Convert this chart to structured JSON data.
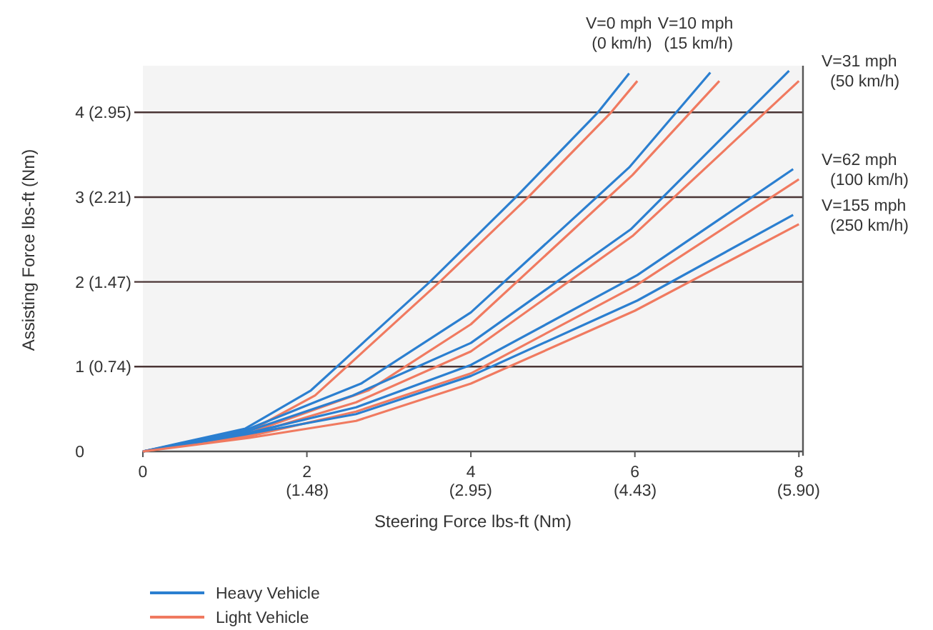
{
  "chart_data": {
    "type": "line",
    "xlabel": "Steering Force lbs-ft (Nm)",
    "ylabel": "Assisting Force lbs-ft (Nm)",
    "xlim": [
      0,
      8.05
    ],
    "ylim": [
      0,
      4.55
    ],
    "xticks": [
      0,
      2,
      4,
      6,
      8
    ],
    "yticks": [
      0,
      1,
      2,
      3,
      4
    ],
    "x2lim": [
      0,
      5.94
    ],
    "x2ticks": [
      {
        "value": 1.48,
        "label": "(1.48)"
      },
      {
        "value": 2.95,
        "label": "(2.95)"
      },
      {
        "value": 4.43,
        "label": "(4.43)"
      },
      {
        "value": 5.9,
        "label": "(5.90)"
      }
    ],
    "y2lim": [
      0,
      3.356
    ],
    "y2ticks": [
      {
        "value": 0.74,
        "label": "(0.74)"
      },
      {
        "value": 1.47,
        "label": "(1.47)"
      },
      {
        "value": 2.21,
        "label": "(2.21)"
      },
      {
        "value": 2.95,
        "label": "(2.95)"
      }
    ],
    "grid": "y",
    "legend": "bottom left",
    "marker": "none",
    "line_style": "solid",
    "series": [
      {
        "name": "Heavy Vehicle",
        "color": "#2b7fd0",
        "x": [
          0,
          1.25,
          2.05,
          3.5,
          4.55,
          5.55,
          5.93
        ],
        "values": [
          0,
          0.27,
          0.72,
          2.0,
          3.0,
          4.0,
          4.46
        ]
      },
      {
        "name": "Light Vehicle",
        "color": "#f07a60",
        "x": [
          0,
          1.3,
          2.1,
          3.62,
          4.7,
          5.71,
          6.03
        ],
        "values": [
          0,
          0.24,
          0.66,
          2.0,
          3.0,
          4.0,
          4.37
        ]
      },
      {
        "color": "#2b7fd0",
        "x": [
          0,
          1.25,
          2.66,
          4,
          5.93,
          6.92
        ],
        "values": [
          0,
          0.25,
          0.8,
          1.64,
          3.35,
          4.47
        ]
      },
      {
        "color": "#f07a60",
        "x": [
          0,
          1.3,
          2.75,
          4,
          5.97,
          7.03
        ],
        "values": [
          0,
          0.22,
          0.72,
          1.5,
          3.26,
          4.37
        ]
      },
      {
        "color": "#2b7fd0",
        "x": [
          0,
          1.25,
          2.56,
          4,
          5.95,
          7.88
        ],
        "values": [
          0,
          0.23,
          0.66,
          1.28,
          2.62,
          4.49
        ]
      },
      {
        "color": "#f07a60",
        "x": [
          0,
          1.3,
          2.6,
          4,
          5.97,
          8
        ],
        "values": [
          0,
          0.2,
          0.58,
          1.18,
          2.54,
          4.37
        ]
      },
      {
        "color": "#2b7fd0",
        "x": [
          0,
          1.25,
          2.6,
          4,
          6.03,
          7.93
        ],
        "values": [
          0,
          0.21,
          0.52,
          1.02,
          2.08,
          3.33
        ]
      },
      {
        "color": "#f07a60",
        "x": [
          0,
          1.3,
          2.6,
          4,
          6,
          8
        ],
        "values": [
          0,
          0.18,
          0.47,
          0.92,
          1.95,
          3.21
        ]
      },
      {
        "color": "#2b7fd0",
        "x": [
          0,
          1.25,
          2.6,
          4,
          6.03,
          7.93
        ],
        "values": [
          0,
          0.2,
          0.44,
          0.89,
          1.78,
          2.79
        ]
      },
      {
        "color": "#f07a60",
        "x": [
          0,
          1.3,
          2.6,
          4,
          6,
          8
        ],
        "values": [
          0,
          0.16,
          0.36,
          0.8,
          1.66,
          2.68
        ]
      }
    ],
    "annotations": [
      {
        "text": "V=0 mph\n(0 km/h)",
        "x": 5.93,
        "y": 4.46
      },
      {
        "text": "V=10 mph\n(15 km/h)",
        "x": 6.92,
        "y": 4.47
      },
      {
        "text": "V=31 mph\n(50 km/h)",
        "x": 7.88,
        "y": 4.49
      },
      {
        "text": "V=62 mph\n(100 km/h)",
        "x": 7.93,
        "y": 3.33
      },
      {
        "text": "V=155 mph\n(250 km/h)",
        "x": 7.93,
        "y": 2.79
      }
    ]
  }
}
